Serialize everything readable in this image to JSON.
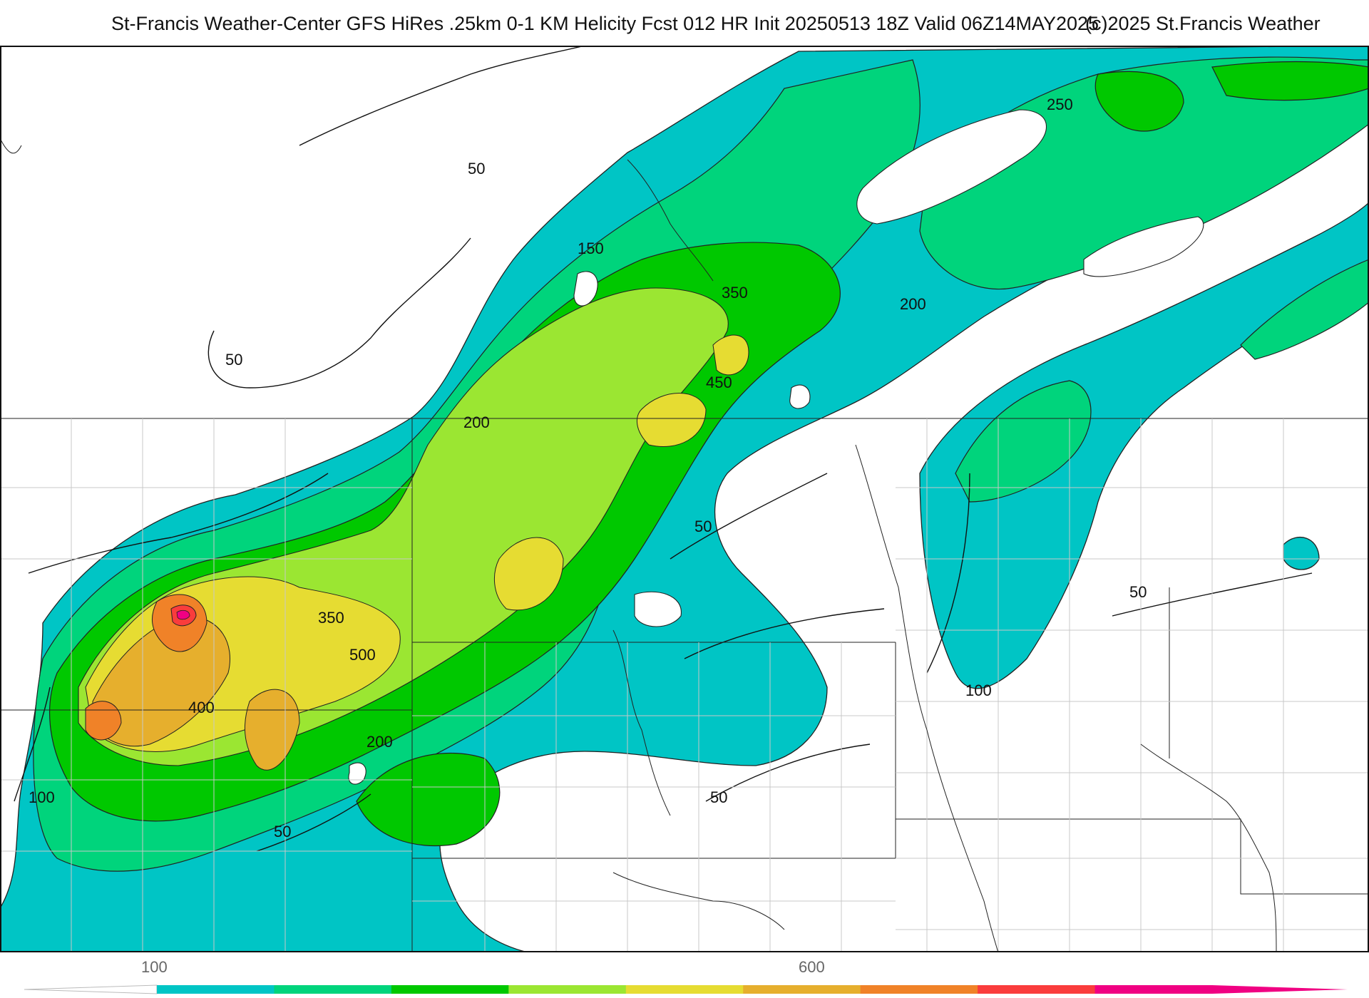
{
  "header": {
    "title": "St-Francis Weather-Center GFS HiRes .25km 0-1 KM Helicity Fcst 012 HR Init 20250513 18Z  Valid 06Z14MAY2025",
    "copyright": "(c)2025 St.Francis Weather"
  },
  "map": {
    "contour_labels": [
      {
        "text": "50",
        "pos": "north-west"
      },
      {
        "text": "50",
        "pos": "west"
      },
      {
        "text": "150",
        "pos": "north-center"
      },
      {
        "text": "250",
        "pos": "north-east"
      },
      {
        "text": "350",
        "pos": "center-north"
      },
      {
        "text": "200",
        "pos": "east-north"
      },
      {
        "text": "450",
        "pos": "center"
      },
      {
        "text": "200",
        "pos": "center-west"
      },
      {
        "text": "50",
        "pos": "center-east"
      },
      {
        "text": "350",
        "pos": "south-west-inner"
      },
      {
        "text": "500",
        "pos": "south-west-center"
      },
      {
        "text": "400",
        "pos": "south-west"
      },
      {
        "text": "200",
        "pos": "south-center"
      },
      {
        "text": "50",
        "pos": "east"
      },
      {
        "text": "100",
        "pos": "south-east"
      },
      {
        "text": "100",
        "pos": "far-west"
      },
      {
        "text": "50",
        "pos": "south-center-east"
      },
      {
        "text": "50",
        "pos": "south-west-lower"
      }
    ],
    "colors": {
      "c100": "#00c5c5",
      "c150": "#00d47c",
      "c200": "#00c800",
      "c300": "#9be632",
      "c400": "#e6dc32",
      "c500": "#e6af2d",
      "c600": "#f08228",
      "c700": "#fa3c3c",
      "c800": "#f00082"
    }
  },
  "colorbar": {
    "labels": [
      "100",
      "600"
    ],
    "colors": [
      "#00c5c5",
      "#00d47c",
      "#00c800",
      "#9be632",
      "#e6dc32",
      "#e6af2d",
      "#f08228",
      "#fa3c3c",
      "#f00082"
    ]
  }
}
